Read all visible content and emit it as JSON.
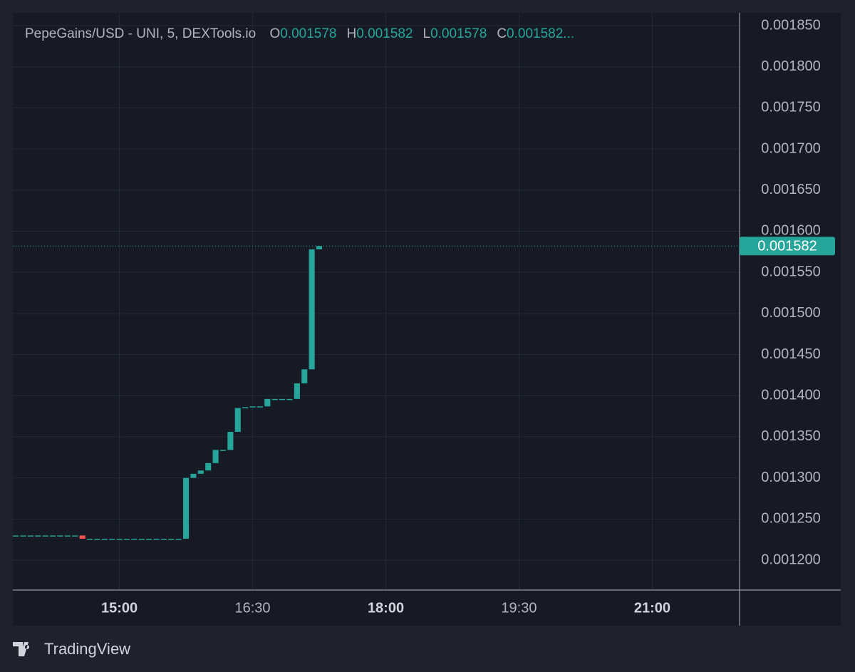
{
  "chart_data": {
    "type": "candlestick",
    "symbol": "PepeGains/USD - UNI, 5, DEXTools.io",
    "ohlc_legend": [
      {
        "label": "O",
        "value": "0.001578"
      },
      {
        "label": "H",
        "value": "0.001582"
      },
      {
        "label": "L",
        "value": "0.001578"
      },
      {
        "label": "C",
        "value": "0.001582..."
      }
    ],
    "x": [
      "13:50",
      "13:55",
      "14:00",
      "14:05",
      "14:10",
      "14:15",
      "14:20",
      "14:25",
      "14:30",
      "14:35",
      "14:40",
      "14:45",
      "14:50",
      "14:55",
      "15:00",
      "15:05",
      "15:10",
      "15:15",
      "15:20",
      "15:25",
      "15:30",
      "15:35",
      "15:40",
      "15:45",
      "15:50",
      "15:55",
      "16:00",
      "16:05",
      "16:10",
      "16:15",
      "16:20",
      "16:25",
      "16:30",
      "16:35",
      "16:40",
      "16:45",
      "16:50",
      "16:55",
      "17:00",
      "17:05",
      "17:10",
      "17:15"
    ],
    "open": [
      0.00123,
      0.00123,
      0.00123,
      0.00123,
      0.00123,
      0.00123,
      0.00123,
      0.00123,
      0.00123,
      0.00123,
      0.001226,
      0.001226,
      0.001226,
      0.001226,
      0.001226,
      0.001226,
      0.001226,
      0.001226,
      0.001226,
      0.001226,
      0.001226,
      0.001226,
      0.001226,
      0.001226,
      0.0013,
      0.001305,
      0.001309,
      0.001318,
      0.001334,
      0.001334,
      0.001356,
      0.001385,
      0.001386,
      0.001387,
      0.001387,
      0.001396,
      0.001396,
      0.001396,
      0.001396,
      0.001415,
      0.001432,
      0.001578
    ],
    "close": [
      0.00123,
      0.00123,
      0.00123,
      0.00123,
      0.00123,
      0.00123,
      0.00123,
      0.00123,
      0.00123,
      0.001226,
      0.001226,
      0.001226,
      0.001226,
      0.001226,
      0.001226,
      0.001226,
      0.001226,
      0.001226,
      0.001226,
      0.001226,
      0.001226,
      0.001226,
      0.001226,
      0.0013,
      0.001305,
      0.001309,
      0.001318,
      0.001334,
      0.001334,
      0.001356,
      0.001385,
      0.001386,
      0.001387,
      0.001387,
      0.001396,
      0.001396,
      0.001396,
      0.001396,
      0.001415,
      0.001432,
      0.001578,
      0.001582
    ],
    "up_color": "#26a69a",
    "down_color": "#ef5350",
    "last_price": 0.001582,
    "xlim": [
      "13:48",
      "21:59"
    ],
    "xticks": [
      "15:00",
      "16:30",
      "18:00",
      "19:30",
      "21:00"
    ],
    "ylim": [
      0.0011636,
      0.0018656
    ],
    "yticks": [
      {
        "value": 0.0012,
        "label": "0.001200"
      },
      {
        "value": 0.00125,
        "label": "0.001250"
      },
      {
        "value": 0.0013,
        "label": "0.001300"
      },
      {
        "value": 0.00135,
        "label": "0.001350"
      },
      {
        "value": 0.0014,
        "label": "0.001400"
      },
      {
        "value": 0.00145,
        "label": "0.001450"
      },
      {
        "value": 0.0015,
        "label": "0.001500"
      },
      {
        "value": 0.00155,
        "label": "0.001550"
      },
      {
        "value": 0.0016,
        "label": "0.001600"
      },
      {
        "value": 0.00165,
        "label": "0.001650"
      },
      {
        "value": 0.0017,
        "label": "0.001700"
      },
      {
        "value": 0.00175,
        "label": "0.001750"
      },
      {
        "value": 0.0018,
        "label": "0.001800"
      },
      {
        "value": 0.00185,
        "label": "0.001850"
      }
    ],
    "grid": true
  },
  "footer": {
    "brand": "TradingView"
  }
}
